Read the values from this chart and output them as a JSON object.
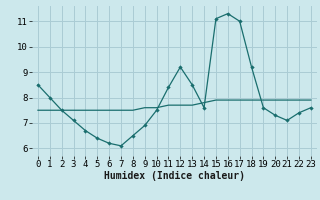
{
  "xlabel": "Humidex (Indice chaleur)",
  "bg_color": "#cce8ec",
  "grid_color": "#aaccd4",
  "line_color": "#1a6e6e",
  "line1_x": [
    0,
    1,
    2,
    3,
    4,
    5,
    6,
    7,
    8,
    9,
    10,
    11,
    12,
    13,
    14,
    15,
    16,
    17,
    18,
    19,
    20,
    21,
    22,
    23
  ],
  "line1_y": [
    8.5,
    8.0,
    7.5,
    7.1,
    6.7,
    6.4,
    6.2,
    6.1,
    6.5,
    6.9,
    7.5,
    8.4,
    9.2,
    8.5,
    7.6,
    11.1,
    11.3,
    11.0,
    9.2,
    7.6,
    7.3,
    7.1,
    7.4,
    7.6
  ],
  "line2_x": [
    0,
    1,
    2,
    3,
    4,
    5,
    6,
    7,
    8,
    9,
    10,
    11,
    12,
    13,
    14,
    15,
    16,
    17,
    18,
    19,
    20,
    21,
    22,
    23
  ],
  "line2_y": [
    7.5,
    7.5,
    7.5,
    7.5,
    7.5,
    7.5,
    7.5,
    7.5,
    7.5,
    7.6,
    7.6,
    7.7,
    7.7,
    7.7,
    7.8,
    7.9,
    7.9,
    7.9,
    7.9,
    7.9,
    7.9,
    7.9,
    7.9,
    7.9
  ],
  "xlim": [
    -0.5,
    23.5
  ],
  "ylim": [
    5.7,
    11.6
  ],
  "yticks": [
    6,
    7,
    8,
    9,
    10,
    11
  ],
  "xticks": [
    0,
    1,
    2,
    3,
    4,
    5,
    6,
    7,
    8,
    9,
    10,
    11,
    12,
    13,
    14,
    15,
    16,
    17,
    18,
    19,
    20,
    21,
    22,
    23
  ],
  "xlabel_fontsize": 7,
  "tick_fontsize": 6.5
}
